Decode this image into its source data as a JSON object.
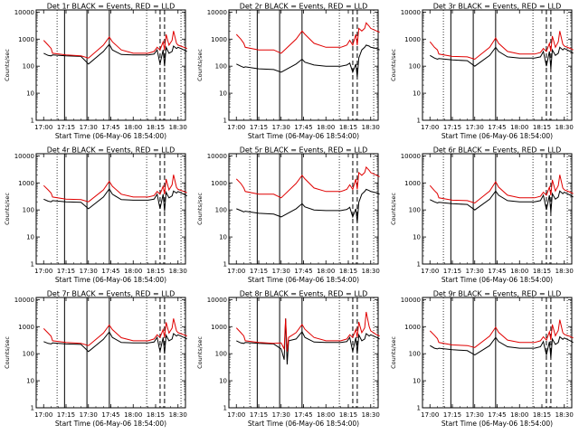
{
  "figure": {
    "ylabel": "Counts/sec",
    "xlabel": "Start Time (06-May-06 18:54:00)",
    "series_colors": {
      "events": "#000000",
      "lld": "#e00000"
    }
  },
  "chart_data": [
    {
      "type": "line",
      "title": "Det 1r BLACK = Events, RED = LLD",
      "x_tick_labels": [
        "17:00",
        "17:15",
        "17:30",
        "17:45",
        "18:00",
        "18:15",
        "18:30"
      ],
      "y_tick_labels": [
        "1",
        "10",
        "100",
        "1000",
        "10000"
      ],
      "ylim": [
        1,
        12000
      ],
      "y_scale": "log",
      "grid": false,
      "solid_markers": [
        "17:14",
        "17:29",
        "17:44"
      ],
      "dotted_markers": [
        "17:09",
        "18:09",
        "18:32"
      ],
      "dashed_markers": [
        "18:18",
        "18:21"
      ],
      "x_minutes": [
        0,
        3,
        5,
        6,
        15,
        25,
        30,
        40,
        44,
        46,
        52,
        60,
        70,
        74,
        76,
        78,
        80,
        81,
        82,
        84,
        86,
        87,
        89,
        90,
        94,
        96
      ],
      "series": [
        {
          "name": "Events",
          "values": [
            300,
            250,
            240,
            260,
            240,
            230,
            120,
            350,
            650,
            400,
            270,
            260,
            260,
            280,
            400,
            120,
            400,
            100,
            500,
            300,
            350,
            550,
            450,
            500,
            400,
            350
          ]
        },
        {
          "name": "LLD",
          "values": [
            900,
            600,
            450,
            300,
            260,
            240,
            200,
            600,
            1200,
            800,
            400,
            300,
            300,
            350,
            500,
            400,
            800,
            400,
            1500,
            600,
            900,
            2000,
            700,
            600,
            500,
            450
          ]
        }
      ]
    },
    {
      "type": "line",
      "title": "Det 2r BLACK = Events, RED = LLD",
      "x_tick_labels": [
        "17:00",
        "17:15",
        "17:30",
        "17:45",
        "18:00",
        "18:15",
        "18:30"
      ],
      "y_tick_labels": [
        "1",
        "10",
        "100",
        "1000",
        "10000"
      ],
      "ylim": [
        1,
        12000
      ],
      "y_scale": "log",
      "grid": false,
      "solid_markers": [
        "17:14",
        "17:29",
        "17:44"
      ],
      "dotted_markers": [
        "17:09",
        "18:09",
        "18:32"
      ],
      "dashed_markers": [
        "18:18",
        "18:21"
      ],
      "x_minutes": [
        0,
        3,
        5,
        6,
        15,
        25,
        30,
        40,
        44,
        46,
        52,
        60,
        70,
        74,
        76,
        78,
        80,
        81,
        82,
        84,
        86,
        87,
        89,
        90,
        94,
        96
      ],
      "series": [
        {
          "name": "Events",
          "values": [
            120,
            100,
            90,
            95,
            80,
            75,
            60,
            120,
            180,
            140,
            110,
            100,
            100,
            110,
            130,
            60,
            120,
            40,
            200,
            400,
            500,
            600,
            550,
            500,
            450,
            400
          ]
        },
        {
          "name": "LLD",
          "values": [
            1500,
            1000,
            700,
            500,
            400,
            400,
            300,
            1000,
            2000,
            1500,
            700,
            500,
            500,
            600,
            900,
            600,
            1500,
            600,
            2500,
            2000,
            2500,
            4000,
            3000,
            2500,
            2000,
            1800
          ]
        }
      ]
    },
    {
      "type": "line",
      "title": "Det 3r BLACK = Events, RED = LLD",
      "x_tick_labels": [
        "17:00",
        "17:15",
        "17:30",
        "17:45",
        "18:00",
        "18:15",
        "18:30"
      ],
      "y_tick_labels": [
        "1",
        "10",
        "100",
        "1000",
        "10000"
      ],
      "ylim": [
        1,
        12000
      ],
      "y_scale": "log",
      "grid": false,
      "solid_markers": [
        "17:14",
        "17:29",
        "17:44"
      ],
      "dotted_markers": [
        "17:09",
        "18:09",
        "18:32"
      ],
      "dashed_markers": [
        "18:18",
        "18:21"
      ],
      "x_minutes": [
        0,
        3,
        5,
        6,
        15,
        25,
        30,
        40,
        44,
        46,
        52,
        60,
        70,
        74,
        76,
        78,
        80,
        81,
        82,
        84,
        86,
        87,
        89,
        90,
        94,
        96
      ],
      "series": [
        {
          "name": "Events",
          "values": [
            250,
            200,
            180,
            190,
            170,
            160,
            100,
            250,
            500,
            350,
            220,
            200,
            200,
            220,
            350,
            100,
            350,
            80,
            400,
            250,
            300,
            500,
            400,
            450,
            350,
            300
          ]
        },
        {
          "name": "LLD",
          "values": [
            800,
            500,
            400,
            280,
            230,
            220,
            180,
            500,
            1100,
            700,
            350,
            280,
            280,
            320,
            450,
            350,
            700,
            350,
            1300,
            500,
            800,
            2000,
            650,
            550,
            450,
            400
          ]
        }
      ]
    },
    {
      "type": "line",
      "title": "Det 4r BLACK = Events, RED = LLD",
      "x_tick_labels": [
        "17:00",
        "17:15",
        "17:30",
        "17:45",
        "18:00",
        "18:15",
        "18:30"
      ],
      "y_tick_labels": [
        "1",
        "10",
        "100",
        "1000",
        "10000"
      ],
      "ylim": [
        1,
        12000
      ],
      "y_scale": "log",
      "grid": false,
      "solid_markers": [
        "17:14",
        "17:29",
        "17:44"
      ],
      "dotted_markers": [
        "17:09",
        "18:09",
        "18:32"
      ],
      "dashed_markers": [
        "18:18",
        "18:21"
      ],
      "x_minutes": [
        0,
        3,
        5,
        6,
        15,
        25,
        30,
        40,
        44,
        46,
        52,
        60,
        70,
        74,
        76,
        78,
        80,
        81,
        82,
        84,
        86,
        87,
        89,
        90,
        94,
        96
      ],
      "series": [
        {
          "name": "Events",
          "values": [
            250,
            210,
            200,
            220,
            200,
            190,
            110,
            300,
            600,
            380,
            240,
            230,
            230,
            250,
            380,
            110,
            380,
            90,
            450,
            280,
            330,
            500,
            420,
            480,
            380,
            330
          ]
        },
        {
          "name": "LLD",
          "values": [
            800,
            550,
            420,
            300,
            250,
            240,
            200,
            550,
            1150,
            750,
            380,
            300,
            300,
            340,
            480,
            380,
            750,
            380,
            1400,
            550,
            850,
            2000,
            680,
            580,
            480,
            430
          ]
        }
      ]
    },
    {
      "type": "line",
      "title": "Det 5r BLACK = Events, RED = LLD",
      "x_tick_labels": [
        "17:00",
        "17:15",
        "17:30",
        "17:45",
        "18:00",
        "18:15",
        "18:30"
      ],
      "y_tick_labels": [
        "1",
        "10",
        "100",
        "1000",
        "10000"
      ],
      "ylim": [
        1,
        12000
      ],
      "y_scale": "log",
      "grid": false,
      "solid_markers": [
        "17:14",
        "17:29",
        "17:44"
      ],
      "dotted_markers": [
        "17:09",
        "18:09",
        "18:32"
      ],
      "dashed_markers": [
        "18:18",
        "18:21"
      ],
      "x_minutes": [
        0,
        3,
        5,
        6,
        15,
        25,
        30,
        40,
        44,
        46,
        52,
        60,
        70,
        74,
        76,
        78,
        80,
        81,
        82,
        84,
        86,
        87,
        89,
        90,
        94,
        96
      ],
      "series": [
        {
          "name": "Events",
          "values": [
            110,
            95,
            85,
            90,
            75,
            70,
            55,
            110,
            170,
            130,
            100,
            95,
            95,
            105,
            125,
            55,
            110,
            35,
            190,
            380,
            480,
            580,
            520,
            480,
            430,
            380
          ]
        },
        {
          "name": "LLD",
          "values": [
            1400,
            950,
            650,
            480,
            380,
            380,
            280,
            950,
            1900,
            1400,
            650,
            480,
            480,
            580,
            850,
            580,
            1400,
            580,
            2400,
            1900,
            2400,
            3800,
            2900,
            2400,
            1900,
            1700
          ]
        }
      ]
    },
    {
      "type": "line",
      "title": "Det 6r BLACK = Events, RED = LLD",
      "x_tick_labels": [
        "17:00",
        "17:15",
        "17:30",
        "17:45",
        "18:00",
        "18:15",
        "18:30"
      ],
      "y_tick_labels": [
        "1",
        "10",
        "100",
        "1000",
        "10000"
      ],
      "ylim": [
        1,
        12000
      ],
      "y_scale": "log",
      "grid": false,
      "solid_markers": [
        "17:14",
        "17:29",
        "17:44"
      ],
      "dotted_markers": [
        "17:09",
        "18:09",
        "18:32"
      ],
      "dashed_markers": [
        "18:18",
        "18:21"
      ],
      "x_minutes": [
        0,
        3,
        5,
        6,
        15,
        25,
        30,
        40,
        44,
        46,
        52,
        60,
        70,
        74,
        76,
        78,
        80,
        81,
        82,
        84,
        86,
        87,
        89,
        90,
        94,
        96
      ],
      "series": [
        {
          "name": "Events",
          "values": [
            240,
            200,
            180,
            190,
            170,
            160,
            100,
            250,
            500,
            350,
            220,
            200,
            200,
            220,
            350,
            100,
            350,
            80,
            400,
            250,
            300,
            500,
            400,
            450,
            350,
            300
          ]
        },
        {
          "name": "LLD",
          "values": [
            800,
            520,
            400,
            280,
            230,
            220,
            180,
            500,
            1100,
            700,
            350,
            280,
            280,
            320,
            450,
            350,
            700,
            350,
            1300,
            500,
            800,
            2000,
            650,
            550,
            450,
            400
          ]
        }
      ]
    },
    {
      "type": "line",
      "title": "Det 7r BLACK = Events, RED = LLD",
      "x_tick_labels": [
        "17:00",
        "17:15",
        "17:30",
        "17:45",
        "18:00",
        "18:15",
        "18:30"
      ],
      "y_tick_labels": [
        "1",
        "10",
        "100",
        "1000",
        "10000"
      ],
      "ylim": [
        1,
        12000
      ],
      "y_scale": "log",
      "grid": false,
      "solid_markers": [
        "17:14",
        "17:29",
        "17:44"
      ],
      "dotted_markers": [
        "17:09",
        "18:09",
        "18:32"
      ],
      "dashed_markers": [
        "18:18",
        "18:21"
      ],
      "x_minutes": [
        0,
        3,
        5,
        6,
        15,
        25,
        30,
        40,
        44,
        46,
        52,
        60,
        70,
        74,
        76,
        78,
        80,
        81,
        82,
        84,
        86,
        87,
        89,
        90,
        94,
        96
      ],
      "series": [
        {
          "name": "Events",
          "values": [
            280,
            240,
            230,
            250,
            230,
            220,
            120,
            340,
            640,
            400,
            260,
            250,
            250,
            270,
            400,
            120,
            400,
            100,
            480,
            300,
            350,
            550,
            450,
            500,
            400,
            350
          ]
        },
        {
          "name": "LLD",
          "values": [
            850,
            580,
            440,
            300,
            260,
            240,
            200,
            580,
            1150,
            780,
            390,
            300,
            300,
            350,
            500,
            400,
            780,
            400,
            1450,
            580,
            880,
            2000,
            700,
            600,
            500,
            450
          ]
        }
      ]
    },
    {
      "type": "line",
      "title": "Det 8r BLACK = Events, RED = LLD",
      "x_tick_labels": [
        "17:00",
        "17:15",
        "17:30",
        "17:45",
        "18:00",
        "18:15",
        "18:30"
      ],
      "y_tick_labels": [
        "1",
        "10",
        "100",
        "1000",
        "10000"
      ],
      "ylim": [
        1,
        12000
      ],
      "y_scale": "log",
      "grid": false,
      "solid_markers": [
        "17:14",
        "17:29",
        "17:44"
      ],
      "dotted_markers": [
        "17:09",
        "18:09",
        "18:32"
      ],
      "dashed_markers": [
        "18:18",
        "18:21"
      ],
      "x_minutes": [
        0,
        3,
        5,
        6,
        15,
        25,
        30,
        32,
        33,
        34,
        35,
        40,
        44,
        46,
        52,
        60,
        70,
        74,
        76,
        78,
        80,
        81,
        82,
        84,
        86,
        87,
        89,
        90,
        94,
        96
      ],
      "series": [
        {
          "name": "Events",
          "values": [
            300,
            250,
            240,
            260,
            240,
            230,
            150,
            60,
            2000,
            40,
            300,
            350,
            650,
            400,
            270,
            260,
            260,
            280,
            400,
            120,
            400,
            100,
            500,
            300,
            350,
            550,
            450,
            500,
            400,
            350
          ]
        },
        {
          "name": "LLD",
          "values": [
            900,
            600,
            450,
            300,
            260,
            240,
            250,
            150,
            2000,
            120,
            400,
            600,
            1200,
            800,
            400,
            300,
            300,
            350,
            500,
            400,
            800,
            400,
            1500,
            600,
            900,
            3500,
            1000,
            700,
            500,
            450
          ]
        }
      ]
    },
    {
      "type": "line",
      "title": "Det 9r BLACK = Events, RED = LLD",
      "x_tick_labels": [
        "17:00",
        "17:15",
        "17:30",
        "17:45",
        "18:00",
        "18:15",
        "18:30"
      ],
      "y_tick_labels": [
        "1",
        "10",
        "100",
        "1000",
        "10000"
      ],
      "ylim": [
        1,
        12000
      ],
      "y_scale": "log",
      "grid": false,
      "solid_markers": [
        "17:14",
        "17:29",
        "17:44"
      ],
      "dotted_markers": [
        "17:09",
        "18:09",
        "18:32"
      ],
      "dashed_markers": [
        "18:18",
        "18:21"
      ],
      "x_minutes": [
        0,
        3,
        5,
        6,
        15,
        25,
        30,
        40,
        44,
        46,
        52,
        60,
        70,
        74,
        76,
        78,
        80,
        81,
        82,
        84,
        86,
        87,
        89,
        90,
        94,
        96
      ],
      "series": [
        {
          "name": "Events",
          "values": [
            200,
            160,
            150,
            160,
            140,
            130,
            90,
            200,
            400,
            280,
            180,
            160,
            160,
            180,
            280,
            90,
            280,
            70,
            350,
            220,
            260,
            420,
            340,
            380,
            300,
            260
          ]
        },
        {
          "name": "LLD",
          "values": [
            700,
            480,
            360,
            260,
            210,
            200,
            170,
            450,
            950,
            620,
            320,
            260,
            260,
            300,
            420,
            320,
            650,
            320,
            1200,
            460,
            720,
            1800,
            600,
            520,
            430,
            380
          ]
        }
      ]
    }
  ]
}
